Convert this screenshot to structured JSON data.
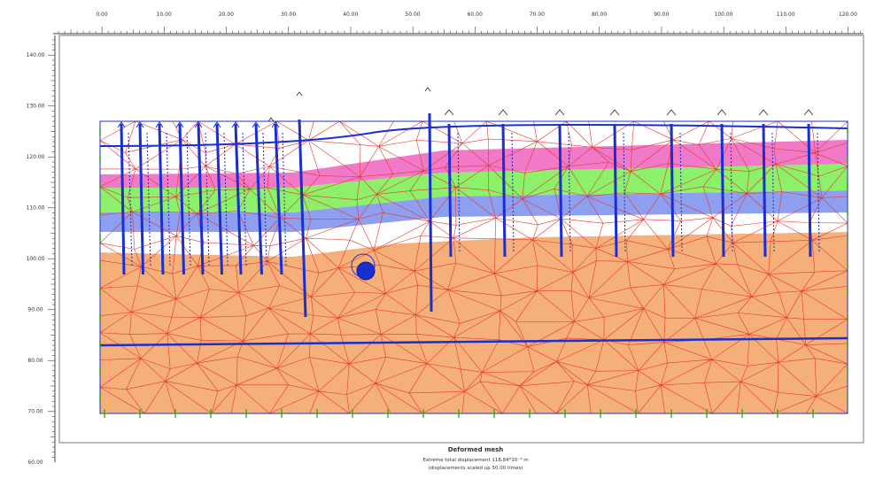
{
  "top_ruler": {
    "labels": [
      "0.00",
      "10.00",
      "20.00",
      "30.00",
      "40.00",
      "50.00",
      "60.00",
      "70.00",
      "80.00",
      "90.00",
      "100.00",
      "110.00",
      "120.00"
    ]
  },
  "left_ruler": {
    "labels": [
      "140.00",
      "130.00",
      "120.00",
      "110.00",
      "100.00",
      "90.00",
      "80.00",
      "70.00",
      "60.00"
    ]
  },
  "caption": {
    "title": "Deformed mesh",
    "line1": "Extreme total displacement 118.84*10⁻³ m",
    "line2": "(displacements scaled up 50.00 times)"
  }
}
